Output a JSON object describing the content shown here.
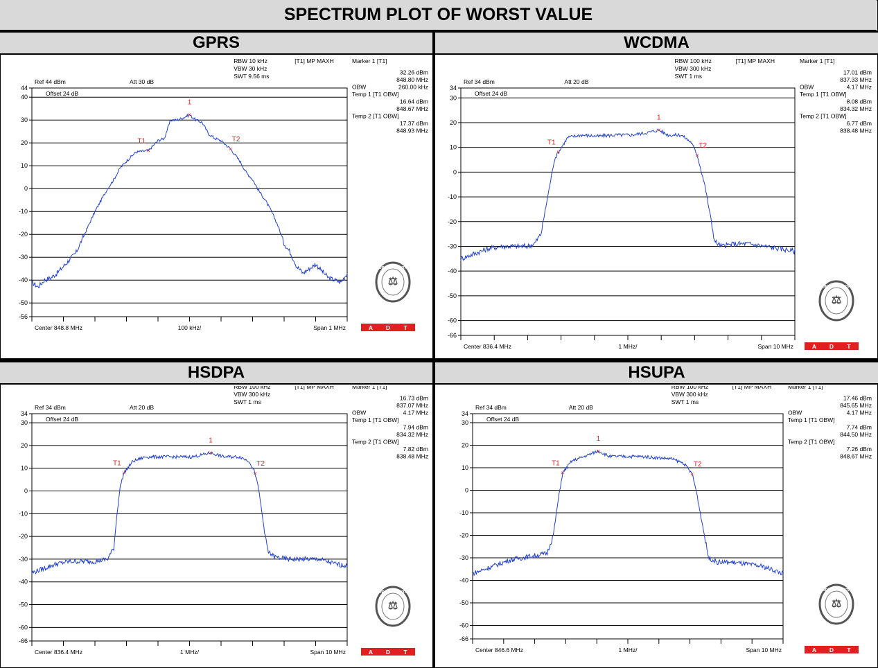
{
  "title": "SPECTRUM PLOT OF WORST VALUE",
  "logo": {
    "text": "BUREAU VERITAS",
    "year": "1828",
    "adt": [
      "A",
      "D",
      "T"
    ],
    "adt_color": "#e02020"
  },
  "colors": {
    "trace": "#1f3fd6",
    "marker": "#e02020",
    "grid": "#000000"
  },
  "chart_data": [
    {
      "panel": "GPRS",
      "type": "line",
      "ref": "Ref 44 dBm",
      "att": "Att  30 dB",
      "offset": "Offset 24 dB",
      "rbw": "RBW 10 kHz",
      "vbw": "VBW 30 kHz",
      "swt": "SWT 9.56 ms",
      "mode": "[T1] MP MAXH",
      "center": "Center 848.8 MHz",
      "div": "100 kHz/",
      "span": "Span 1 MHz",
      "ylim": [
        -56,
        44
      ],
      "yticks": [
        "44",
        "40",
        "30",
        "20",
        "10",
        "0",
        "-10",
        "-20",
        "-30",
        "-40",
        "-50",
        "-56"
      ],
      "markers_text": [
        [
          "Marker 1 [T1]",
          ""
        ],
        [
          "",
          "32.26 dBm"
        ],
        [
          "",
          "848.80 MHz"
        ],
        [
          "OBW",
          "260.00 kHz"
        ],
        [
          "Temp 1 [T1 OBW]",
          ""
        ],
        [
          "",
          "16.64 dBm"
        ],
        [
          "",
          "848.67 MHz"
        ],
        [
          "Temp 2 [T1 OBW]",
          ""
        ],
        [
          "",
          "17.37 dBm"
        ],
        [
          "",
          "848.93 MHz"
        ]
      ],
      "markers": [
        {
          "label": "1",
          "x": 848.8,
          "y": 32.26
        },
        {
          "label": "T1",
          "x": 848.67,
          "y": 16.64
        },
        {
          "label": "T2",
          "x": 848.93,
          "y": 17.37
        }
      ],
      "trace_x_range": [
        848.3,
        849.3
      ],
      "trace": [
        [
          848.3,
          -41
        ],
        [
          848.32,
          -43
        ],
        [
          848.34,
          -40
        ],
        [
          848.36,
          -39
        ],
        [
          848.38,
          -37
        ],
        [
          848.4,
          -34
        ],
        [
          848.42,
          -31
        ],
        [
          848.44,
          -28
        ],
        [
          848.46,
          -22
        ],
        [
          848.48,
          -16
        ],
        [
          848.5,
          -10
        ],
        [
          848.52,
          -5
        ],
        [
          848.54,
          0
        ],
        [
          848.56,
          4
        ],
        [
          848.58,
          9
        ],
        [
          848.6,
          12
        ],
        [
          848.63,
          16
        ],
        [
          848.67,
          16.64
        ],
        [
          848.7,
          21
        ],
        [
          848.72,
          22
        ],
        [
          848.74,
          30
        ],
        [
          848.76,
          30
        ],
        [
          848.78,
          31
        ],
        [
          848.8,
          32.26
        ],
        [
          848.82,
          30
        ],
        [
          848.84,
          29
        ],
        [
          848.86,
          24
        ],
        [
          848.88,
          22
        ],
        [
          848.9,
          21
        ],
        [
          848.93,
          17.37
        ],
        [
          848.96,
          12
        ],
        [
          848.98,
          7
        ],
        [
          849.0,
          4
        ],
        [
          849.02,
          -1
        ],
        [
          849.04,
          -5
        ],
        [
          849.06,
          -10
        ],
        [
          849.08,
          -16
        ],
        [
          849.1,
          -24
        ],
        [
          849.12,
          -28
        ],
        [
          849.14,
          -34
        ],
        [
          849.16,
          -37
        ],
        [
          849.18,
          -35
        ],
        [
          849.2,
          -33
        ],
        [
          849.22,
          -36
        ],
        [
          849.24,
          -39
        ],
        [
          849.26,
          -40
        ],
        [
          849.28,
          -41
        ],
        [
          849.3,
          -37
        ]
      ]
    },
    {
      "panel": "WCDMA",
      "type": "line",
      "ref": "Ref 34 dBm",
      "att": "Att  20 dB",
      "offset": "Offset 24 dB",
      "rbw": "RBW 100 kHz",
      "vbw": "VBW 300 kHz",
      "swt": "SWT 1 ms",
      "mode": "[T1] MP MAXH",
      "center": "Center 836.4 MHz",
      "div": "1 MHz/",
      "span": "Span 10 MHz",
      "ylim": [
        -66,
        34
      ],
      "yticks": [
        "34",
        "30",
        "20",
        "10",
        "0",
        "-10",
        "-20",
        "-30",
        "-40",
        "-50",
        "-60",
        "-66"
      ],
      "markers_text": [
        [
          "Marker 1 [T1]",
          ""
        ],
        [
          "",
          "17.01 dBm"
        ],
        [
          "",
          "837.33 MHz"
        ],
        [
          "OBW",
          "4.17 MHz"
        ],
        [
          "Temp 1 [T1 OBW]",
          ""
        ],
        [
          "",
          "8.08 dBm"
        ],
        [
          "",
          "834.32 MHz"
        ],
        [
          "Temp 2 [T1 OBW]",
          ""
        ],
        [
          "",
          "6.77 dBm"
        ],
        [
          "",
          "838.48 MHz"
        ]
      ],
      "markers": [
        {
          "label": "1",
          "x": 837.33,
          "y": 17.01
        },
        {
          "label": "T1",
          "x": 834.32,
          "y": 8.08
        },
        {
          "label": "T2",
          "x": 838.48,
          "y": 6.77
        }
      ],
      "trace_x_range": [
        831.4,
        841.4
      ],
      "trace": [
        [
          831.4,
          -35
        ],
        [
          831.8,
          -33
        ],
        [
          832.2,
          -31
        ],
        [
          832.6,
          -30
        ],
        [
          833.0,
          -30
        ],
        [
          833.4,
          -30
        ],
        [
          833.6,
          -29
        ],
        [
          833.8,
          -25
        ],
        [
          834.0,
          -10
        ],
        [
          834.2,
          5
        ],
        [
          834.32,
          8.08
        ],
        [
          834.6,
          14
        ],
        [
          835.0,
          15
        ],
        [
          835.5,
          14.5
        ],
        [
          836.0,
          15
        ],
        [
          836.5,
          15
        ],
        [
          837.0,
          16
        ],
        [
          837.33,
          17.01
        ],
        [
          837.6,
          15
        ],
        [
          838.0,
          15
        ],
        [
          838.3,
          12
        ],
        [
          838.48,
          6.77
        ],
        [
          838.7,
          -5
        ],
        [
          838.9,
          -20
        ],
        [
          839.0,
          -28
        ],
        [
          839.2,
          -30
        ],
        [
          839.6,
          -29
        ],
        [
          840.0,
          -29
        ],
        [
          840.5,
          -30
        ],
        [
          841.0,
          -31
        ],
        [
          841.4,
          -32
        ]
      ]
    },
    {
      "panel": "HSDPA",
      "type": "line",
      "ref": "Ref 34 dBm",
      "att": "Att  20 dB",
      "offset": "Offset 24 dB",
      "rbw": "RBW 100 kHz",
      "vbw": "VBW 300 kHz",
      "swt": "SWT 1 ms",
      "mode": "[T1] MP MAXH",
      "center": "Center 836.4 MHz",
      "div": "1 MHz/",
      "span": "Span 10 MHz",
      "ylim": [
        -66,
        34
      ],
      "yticks": [
        "34",
        "30",
        "20",
        "10",
        "0",
        "-10",
        "-20",
        "-30",
        "-40",
        "-50",
        "-60",
        "-66"
      ],
      "markers_text": [
        [
          "Marker 1 [T1]",
          ""
        ],
        [
          "",
          "16.73 dBm"
        ],
        [
          "",
          "837.07 MHz"
        ],
        [
          "OBW",
          "4.17 MHz"
        ],
        [
          "Temp 1 [T1 OBW]",
          ""
        ],
        [
          "",
          "7.94 dBm"
        ],
        [
          "",
          "834.32 MHz"
        ],
        [
          "Temp 2 [T1 OBW]",
          ""
        ],
        [
          "",
          "7.82 dBm"
        ],
        [
          "",
          "838.48 MHz"
        ]
      ],
      "markers": [
        {
          "label": "1",
          "x": 837.07,
          "y": 16.73
        },
        {
          "label": "T1",
          "x": 834.32,
          "y": 7.94
        },
        {
          "label": "T2",
          "x": 838.48,
          "y": 7.82
        }
      ],
      "trace_x_range": [
        831.4,
        841.4
      ],
      "trace": [
        [
          831.4,
          -36
        ],
        [
          831.8,
          -34
        ],
        [
          832.2,
          -32
        ],
        [
          832.6,
          -31
        ],
        [
          833.0,
          -31
        ],
        [
          833.4,
          -31
        ],
        [
          833.8,
          -30
        ],
        [
          834.0,
          -25
        ],
        [
          834.1,
          -10
        ],
        [
          834.2,
          2
        ],
        [
          834.32,
          7.94
        ],
        [
          834.6,
          13
        ],
        [
          835.0,
          15
        ],
        [
          835.5,
          15
        ],
        [
          836.0,
          15
        ],
        [
          836.5,
          15
        ],
        [
          837.07,
          16.73
        ],
        [
          837.5,
          15
        ],
        [
          838.0,
          15
        ],
        [
          838.3,
          13
        ],
        [
          838.48,
          7.82
        ],
        [
          838.6,
          0
        ],
        [
          838.8,
          -20
        ],
        [
          838.9,
          -27
        ],
        [
          839.1,
          -29
        ],
        [
          839.5,
          -30
        ],
        [
          840.0,
          -30
        ],
        [
          840.5,
          -30
        ],
        [
          841.0,
          -32
        ],
        [
          841.4,
          -33
        ]
      ]
    },
    {
      "panel": "HSUPA",
      "type": "line",
      "ref": "Ref 34 dBm",
      "att": "Att  20 dB",
      "offset": "Offset 24 dB",
      "rbw": "RBW 100 kHz",
      "vbw": "VBW 300 kHz",
      "swt": "SWT 1 ms",
      "mode": "[T1] MP MAXH",
      "center": "Center 846.6 MHz",
      "div": "1 MHz/",
      "span": "Span 10 MHz",
      "ylim": [
        -66,
        34
      ],
      "yticks": [
        "34",
        "30",
        "20",
        "10",
        "0",
        "-10",
        "-20",
        "-30",
        "-40",
        "-50",
        "-60",
        "-66"
      ],
      "markers_text": [
        [
          "Marker 1 [T1]",
          ""
        ],
        [
          "",
          "17.46 dBm"
        ],
        [
          "",
          "845.65 MHz"
        ],
        [
          "OBW",
          "4.17 MHz"
        ],
        [
          "Temp 1 [T1 OBW]",
          ""
        ],
        [
          "",
          "7.74 dBm"
        ],
        [
          "",
          "844.50 MHz"
        ],
        [
          "Temp 2 [T1 OBW]",
          ""
        ],
        [
          "",
          "7.26 dBm"
        ],
        [
          "",
          "848.67 MHz"
        ]
      ],
      "markers": [
        {
          "label": "1",
          "x": 845.65,
          "y": 17.46
        },
        {
          "label": "T1",
          "x": 844.5,
          "y": 7.74
        },
        {
          "label": "T2",
          "x": 848.67,
          "y": 7.26
        }
      ],
      "trace_x_range": [
        841.6,
        851.6
      ],
      "trace": [
        [
          841.6,
          -37
        ],
        [
          842.0,
          -35
        ],
        [
          842.4,
          -33
        ],
        [
          842.8,
          -31
        ],
        [
          843.2,
          -30
        ],
        [
          843.6,
          -29
        ],
        [
          844.0,
          -28
        ],
        [
          844.2,
          -20
        ],
        [
          844.35,
          -5
        ],
        [
          844.5,
          7.74
        ],
        [
          844.8,
          13
        ],
        [
          845.2,
          15
        ],
        [
          845.65,
          17.46
        ],
        [
          846.0,
          15
        ],
        [
          846.5,
          15
        ],
        [
          847.0,
          15
        ],
        [
          847.5,
          14.5
        ],
        [
          848.0,
          14
        ],
        [
          848.4,
          12
        ],
        [
          848.67,
          7.26
        ],
        [
          848.8,
          0
        ],
        [
          849.0,
          -15
        ],
        [
          849.2,
          -30
        ],
        [
          849.5,
          -32
        ],
        [
          850.0,
          -32
        ],
        [
          850.5,
          -33
        ],
        [
          851.0,
          -34
        ],
        [
          851.6,
          -37
        ]
      ]
    }
  ]
}
